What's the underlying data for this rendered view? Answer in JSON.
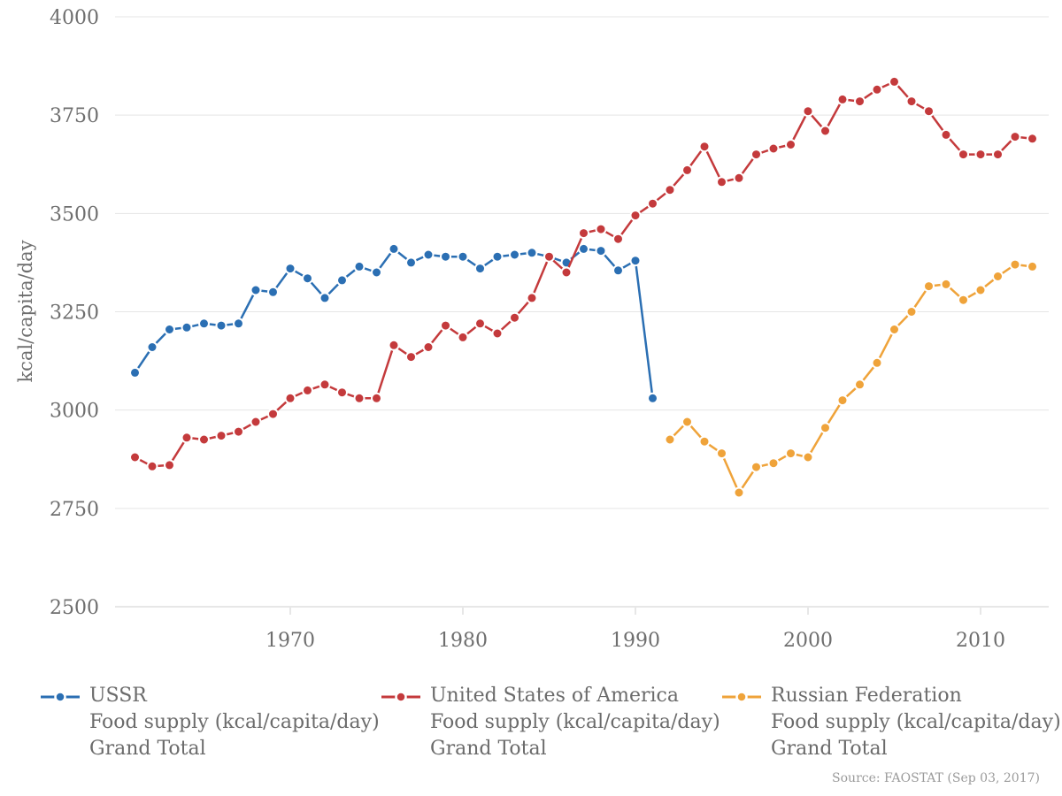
{
  "chart_data": {
    "type": "line",
    "title": "",
    "ylabel": "kcal/capita/day",
    "xlabel": "",
    "y_ticks": [
      4000,
      3750,
      3500,
      3250,
      3000,
      2750,
      2500
    ],
    "x_ticks": [
      1970,
      1980,
      1990,
      2000,
      2010
    ],
    "ylim": [
      2500,
      4000
    ],
    "xlim": [
      1960,
      2014
    ],
    "grid": true,
    "legend_position": "bottom",
    "series": [
      {
        "name": "USSR",
        "metric": "Food supply (kcal/capita/day)",
        "submetric": "Grand Total",
        "color": "#2b6fb3",
        "start_year": 1961,
        "values": [
          3095,
          3160,
          3205,
          3210,
          3220,
          3215,
          3220,
          3305,
          3300,
          3360,
          3335,
          3285,
          3330,
          3365,
          3350,
          3410,
          3375,
          3395,
          3390,
          3390,
          3360,
          3390,
          3395,
          3400,
          3390,
          3375,
          3410,
          3405,
          3355,
          3380,
          3030
        ]
      },
      {
        "name": "United States of America",
        "metric": "Food supply (kcal/capita/day)",
        "submetric": "Grand Total",
        "color": "#c43a3c",
        "start_year": 1961,
        "values": [
          2880,
          2857,
          2860,
          2930,
          2925,
          2935,
          2945,
          2970,
          2990,
          3030,
          3050,
          3065,
          3045,
          3030,
          3030,
          3165,
          3135,
          3160,
          3215,
          3185,
          3220,
          3195,
          3235,
          3285,
          3390,
          3350,
          3450,
          3460,
          3435,
          3495,
          3525,
          3560,
          3610,
          3670,
          3580,
          3590,
          3650,
          3665,
          3675,
          3760,
          3710,
          3790,
          3785,
          3815,
          3835,
          3785,
          3760,
          3700,
          3650,
          3650,
          3650,
          3695,
          3690
        ]
      },
      {
        "name": "Russian Federation",
        "metric": "Food supply (kcal/capita/day)",
        "submetric": "Grand Total",
        "color": "#efa33a",
        "start_year": 1992,
        "values": [
          2925,
          2970,
          2920,
          2890,
          2790,
          2855,
          2865,
          2890,
          2880,
          2955,
          3025,
          3065,
          3120,
          3205,
          3250,
          3315,
          3320,
          3280,
          3305,
          3340,
          3370,
          3365
        ]
      }
    ],
    "source": "Source: FAOSTAT (Sep 03, 2017)"
  },
  "colors": {
    "gridline": "#e5e5e5",
    "axis_line": "#cfcfcf",
    "tick_mark": "#cfcfcf",
    "tick_text": "#6e6e6e",
    "legend_text": "#6b6b6b",
    "source_text": "#9b9b9b",
    "background": "#ffffff"
  }
}
